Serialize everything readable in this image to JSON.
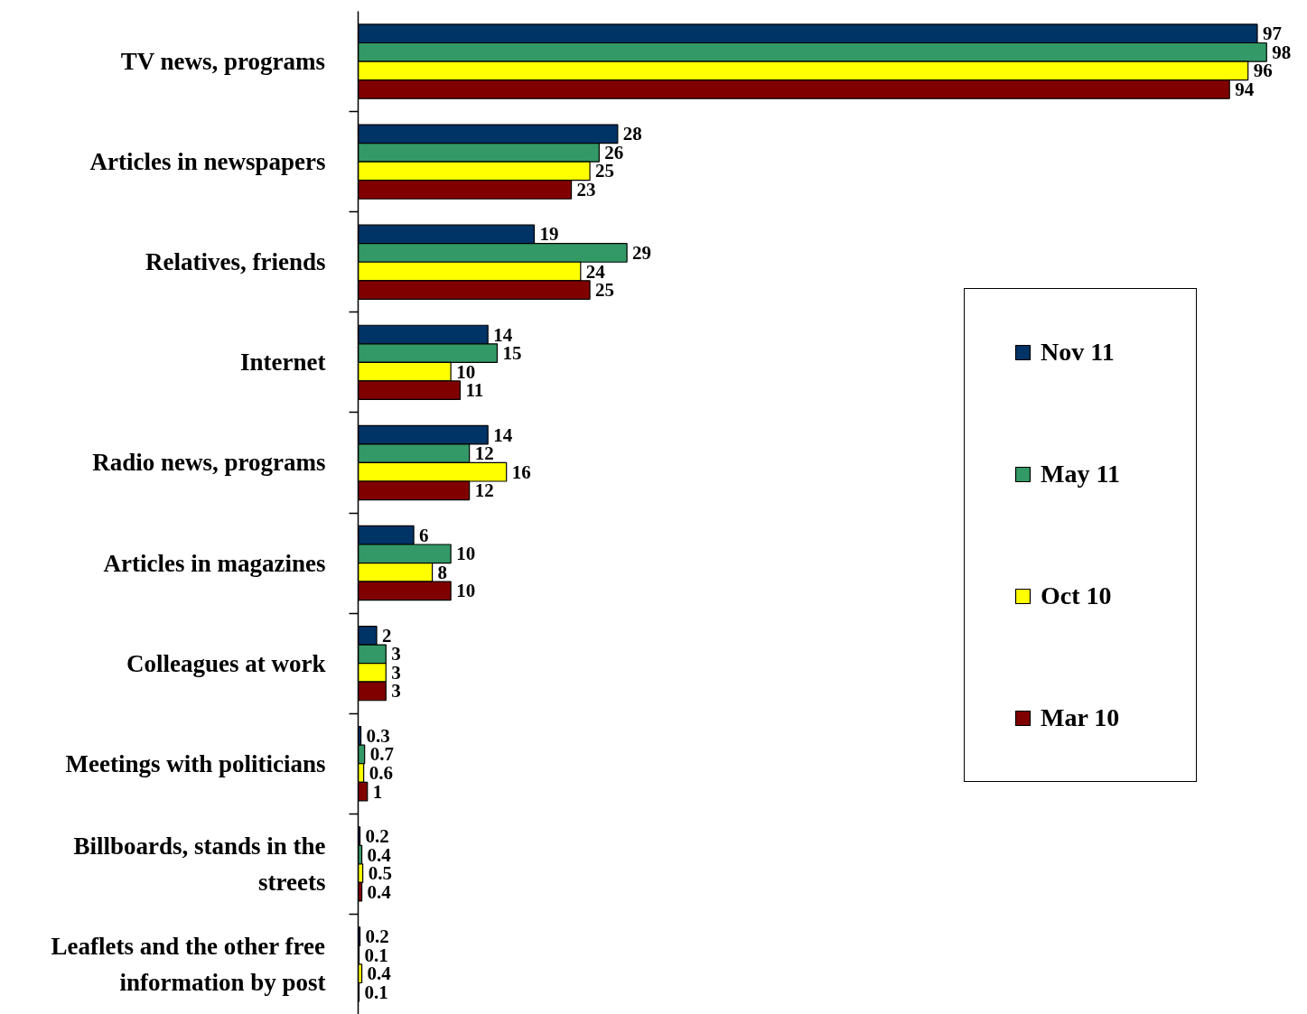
{
  "chart_data": {
    "type": "bar",
    "orientation": "horizontal",
    "data_labels": true,
    "legend": "right",
    "tick_labels": "y",
    "categories": [
      "TV news, programs",
      "Articles in newspapers",
      "Relatives, friends",
      "Internet",
      "Radio news, programs",
      "Articles in magazines",
      "Colleagues at work",
      "Meetings with politicians",
      "Billboards, stands in the streets",
      "Leaflets and the other free information by post"
    ],
    "series": [
      {
        "name": "Nov 11",
        "color": "#003366",
        "values": [
          97,
          28,
          19,
          14,
          14,
          6,
          2,
          0.3,
          0.2,
          0.2
        ]
      },
      {
        "name": "May 11",
        "color": "#339966",
        "values": [
          98,
          26,
          29,
          15,
          12,
          10,
          3,
          0.7,
          0.4,
          0.1
        ]
      },
      {
        "name": "Oct 10",
        "color": "#ffff00",
        "values": [
          96,
          25,
          24,
          10,
          16,
          8,
          3,
          0.6,
          0.5,
          0.4
        ]
      },
      {
        "name": "Mar 10",
        "color": "#800000",
        "values": [
          94,
          23,
          25,
          11,
          12,
          10,
          3,
          1,
          0.4,
          0.1
        ]
      }
    ]
  }
}
